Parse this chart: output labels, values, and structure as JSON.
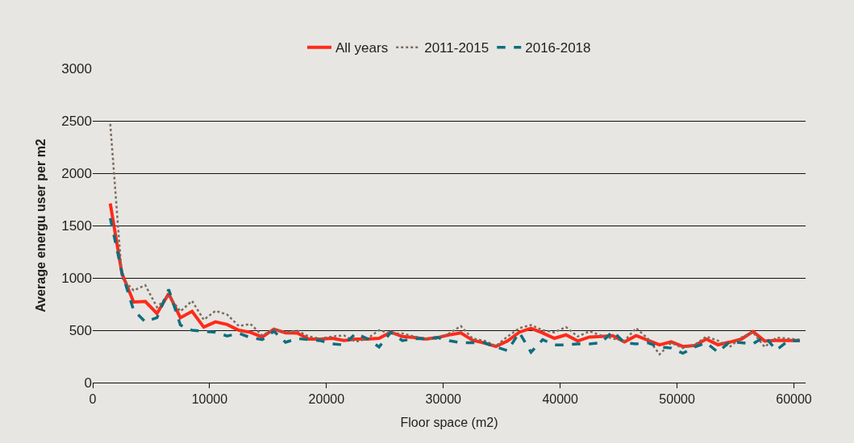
{
  "chart_data": {
    "type": "line",
    "xlabel": "Floor space (m2)",
    "ylabel": "Average energu user per m2",
    "x": [
      1500,
      2500,
      3500,
      4500,
      5500,
      6500,
      7500,
      8500,
      9500,
      10500,
      11500,
      12500,
      13500,
      14500,
      15500,
      16500,
      17500,
      18500,
      19500,
      20500,
      21500,
      22500,
      23500,
      24500,
      25500,
      26500,
      27500,
      28500,
      29500,
      30500,
      31500,
      32500,
      33500,
      34500,
      35500,
      36500,
      37500,
      38500,
      39500,
      40500,
      41500,
      42500,
      43500,
      44500,
      45500,
      46500,
      47500,
      48500,
      49500,
      50500,
      51500,
      52500,
      53500,
      54500,
      55500,
      56500,
      57500,
      58500,
      59500,
      60500
    ],
    "series": [
      {
        "name": "All years",
        "color": "#ff2a1a",
        "line_style": "solid",
        "values": [
          1710,
          1040,
          770,
          775,
          660,
          850,
          620,
          680,
          530,
          580,
          555,
          500,
          480,
          435,
          510,
          475,
          474,
          415,
          415,
          423,
          402,
          415,
          415,
          423,
          481,
          440,
          430,
          415,
          430,
          456,
          474,
          404,
          379,
          345,
          397,
          481,
          518,
          474,
          423,
          456,
          397,
          435,
          440,
          448,
          389,
          448,
          404,
          361,
          389,
          345,
          353,
          415,
          361,
          386,
          415,
          487,
          397,
          404,
          402,
          402
        ]
      },
      {
        "name": "2011-2015",
        "color": "#786d5f",
        "line_style": "dotted",
        "values": [
          2470,
          1000,
          880,
          930,
          720,
          830,
          680,
          780,
          600,
          685,
          650,
          540,
          560,
          450,
          510,
          480,
          495,
          440,
          420,
          440,
          450,
          390,
          420,
          500,
          470,
          470,
          440,
          420,
          420,
          470,
          540,
          420,
          400,
          350,
          440,
          520,
          550,
          500,
          480,
          530,
          440,
          490,
          450,
          420,
          400,
          520,
          420,
          270,
          380,
          330,
          360,
          440,
          400,
          340,
          430,
          480,
          340,
          430,
          420,
          410
        ]
      },
      {
        "name": "2016-2018",
        "color": "#0e6e7e",
        "line_style": "dashed",
        "values": [
          1570,
          1050,
          690,
          580,
          620,
          890,
          550,
          500,
          490,
          480,
          445,
          470,
          430,
          410,
          490,
          385,
          420,
          410,
          400,
          370,
          360,
          470,
          420,
          340,
          480,
          400,
          420,
          420,
          430,
          400,
          380,
          380,
          380,
          340,
          305,
          480,
          290,
          410,
          360,
          360,
          370,
          370,
          380,
          490,
          380,
          370,
          380,
          340,
          330,
          280,
          340,
          380,
          290,
          390,
          380,
          370,
          440,
          310,
          400,
          400
        ]
      }
    ],
    "xlim": [
      0,
      61000
    ],
    "xticks": [
      0,
      10000,
      20000,
      30000,
      40000,
      50000,
      60000
    ],
    "ylim": [
      0,
      3000
    ],
    "yticks": [
      0,
      500,
      1000,
      1500,
      2000,
      2500,
      3000
    ],
    "grid": "y",
    "legend": "top",
    "marker": "none"
  }
}
